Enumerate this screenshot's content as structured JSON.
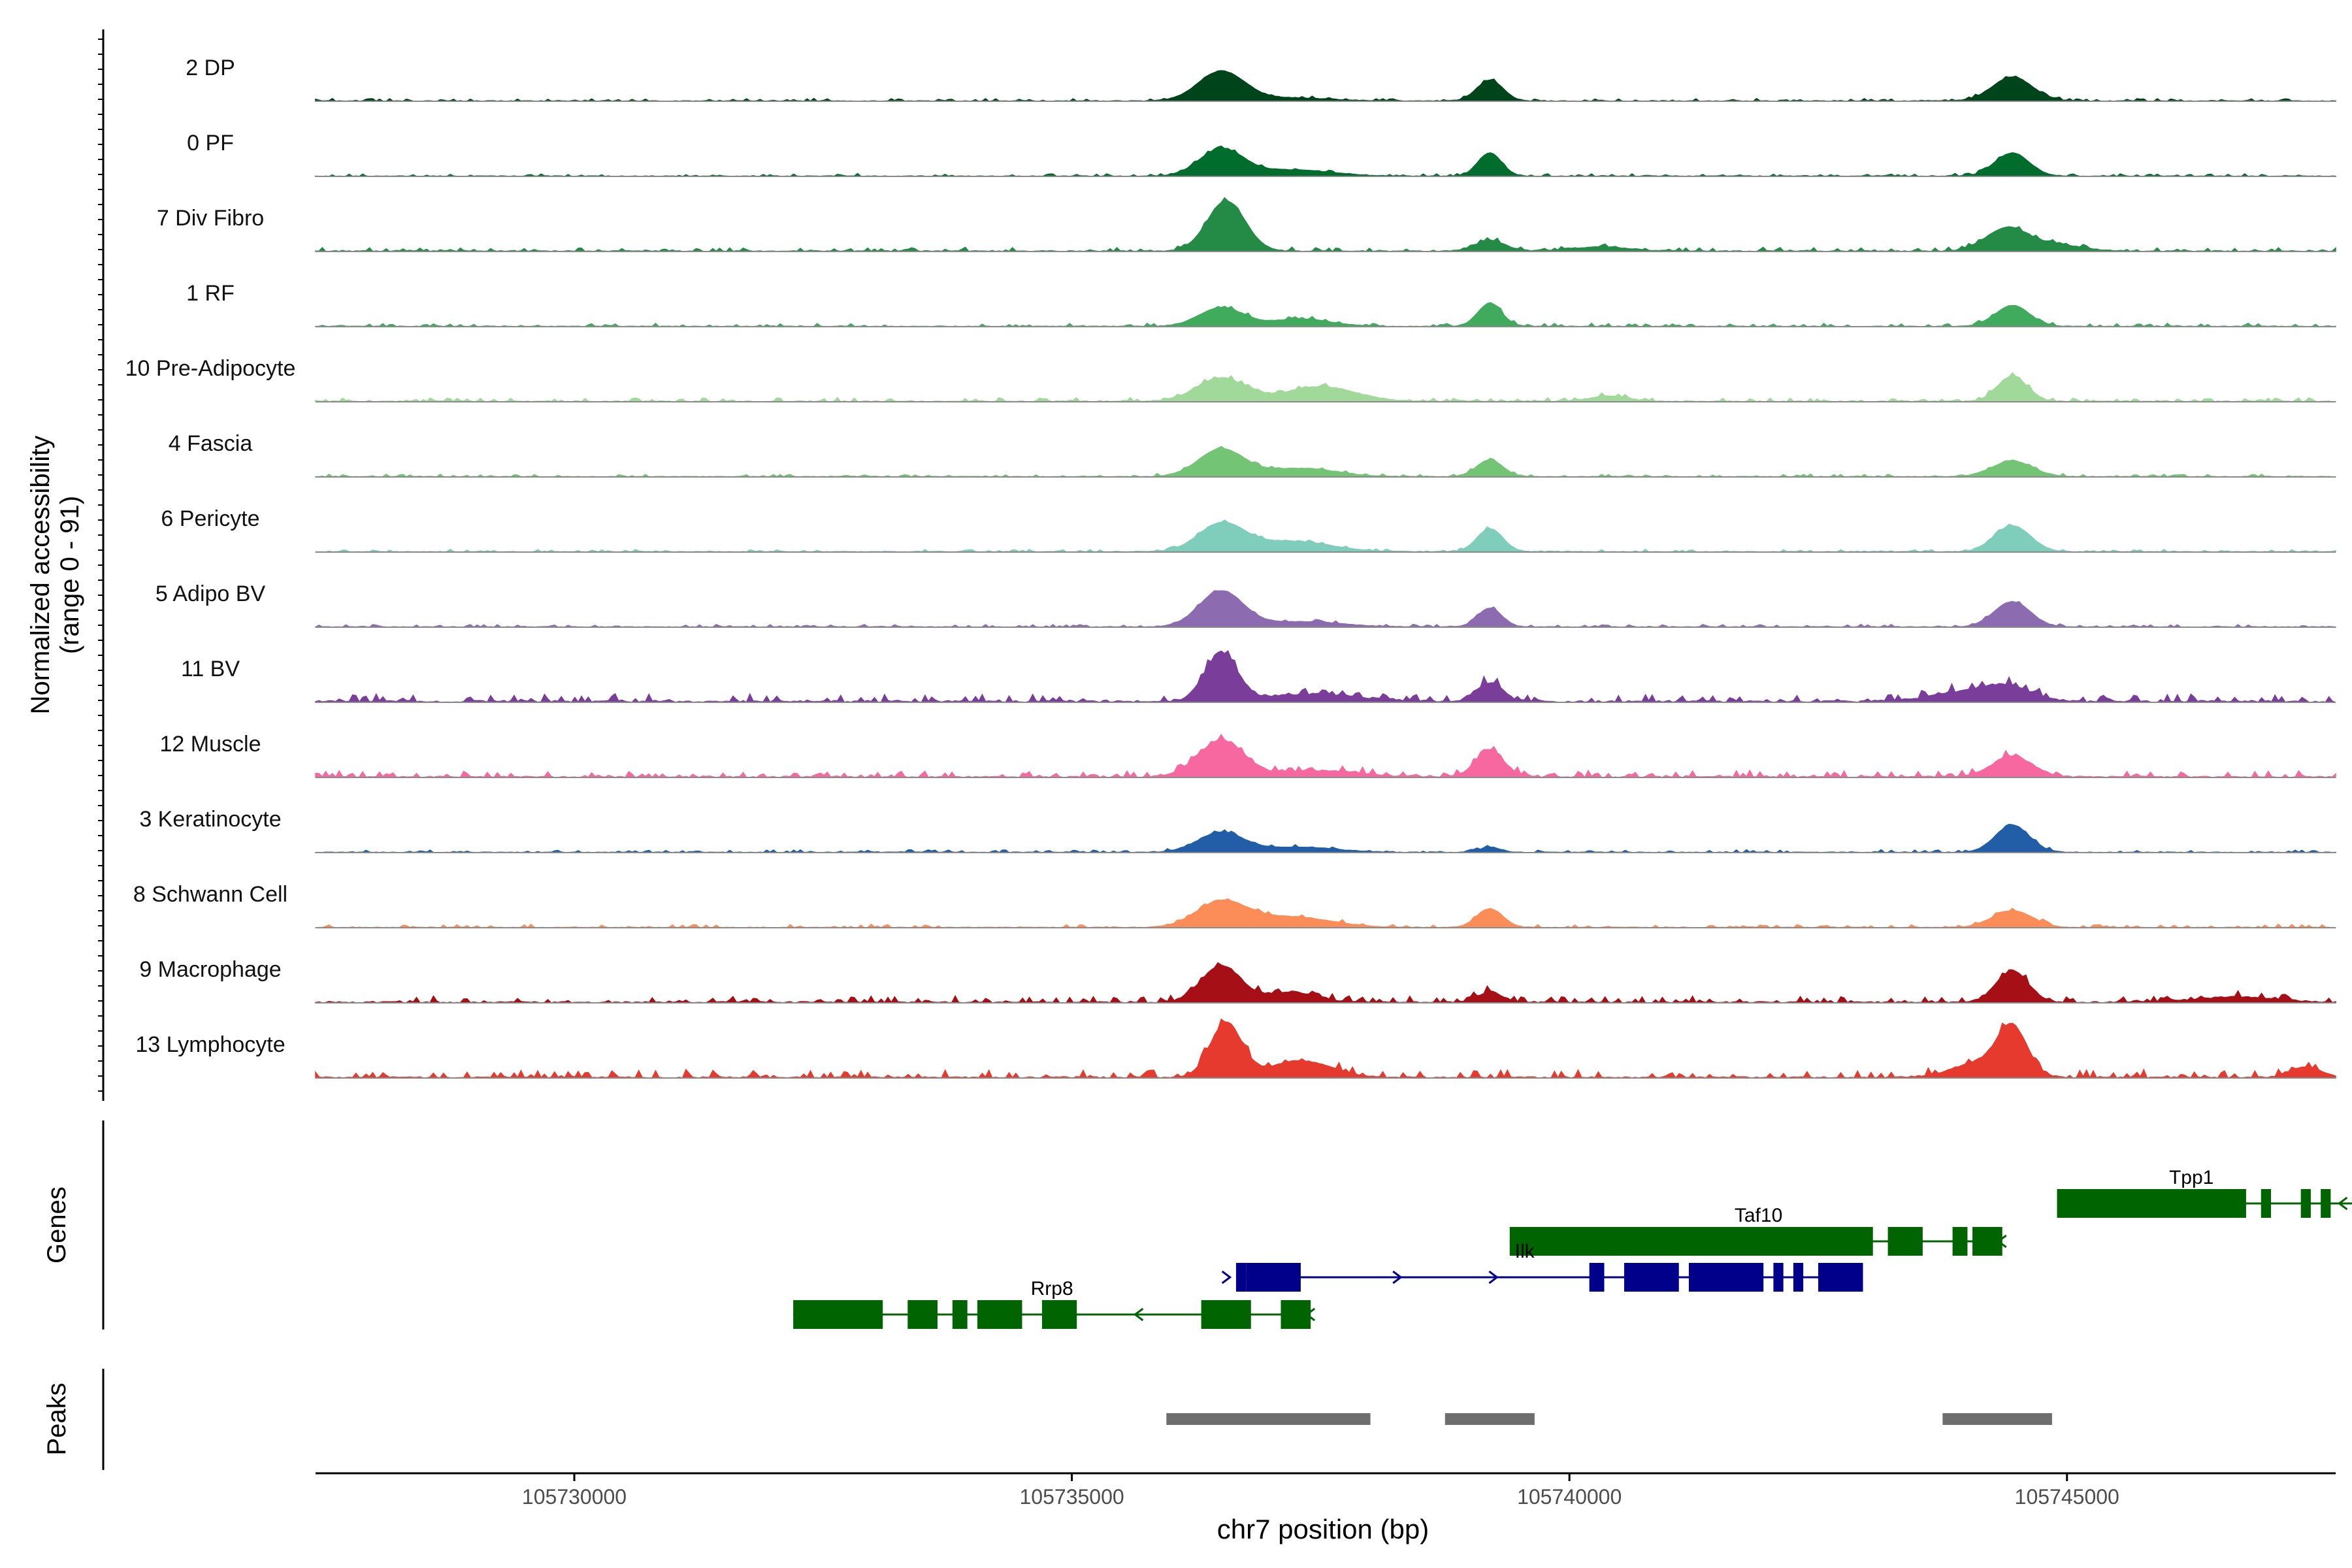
{
  "chart_data": {
    "type": "area",
    "title": "",
    "ylabel_line1": "Normalized accessibility",
    "ylabel_line2": "(range 0 - 91)",
    "xlabel": "chr7 position (bp)",
    "xlim": [
      105727400,
      105747700
    ],
    "ylim": [
      0,
      91
    ],
    "x_ticks": [
      105730000,
      105735000,
      105740000,
      105745000
    ],
    "x_tick_labels": [
      "105730000",
      "105735000",
      "105740000",
      "105745000"
    ],
    "tracks": [
      {
        "name": "2 DP",
        "color": "#00441b",
        "base": 1,
        "noise": 0.8,
        "seed": 11,
        "peaks": [
          [
            105736500,
            28,
            230
          ],
          [
            105739200,
            20,
            130
          ],
          [
            105744450,
            23,
            200
          ],
          [
            105737200,
            3,
            400
          ]
        ]
      },
      {
        "name": "0 PF",
        "color": "#006d2c",
        "base": 1,
        "noise": 0.8,
        "seed": 12,
        "peaks": [
          [
            105736500,
            25,
            220
          ],
          [
            105737200,
            6,
            400
          ],
          [
            105739200,
            22,
            120
          ],
          [
            105744450,
            22,
            170
          ]
        ]
      },
      {
        "name": "7 Div Fibro",
        "color": "#238b45",
        "base": 1.5,
        "noise": 1.2,
        "seed": 13,
        "peaks": [
          [
            105736550,
            48,
            190
          ],
          [
            105739200,
            10,
            150
          ],
          [
            105744400,
            22,
            210
          ],
          [
            105744900,
            6,
            250
          ],
          [
            105740300,
            4,
            300
          ]
        ]
      },
      {
        "name": "1 RF",
        "color": "#41ab5d",
        "base": 1,
        "noise": 1,
        "seed": 14,
        "peaks": [
          [
            105736500,
            18,
            220
          ],
          [
            105737300,
            7,
            300
          ],
          [
            105739200,
            22,
            120
          ],
          [
            105744450,
            20,
            170
          ]
        ]
      },
      {
        "name": "10 Pre-Adipocyte",
        "color": "#a1d99b",
        "base": 1.5,
        "noise": 1.2,
        "seed": 15,
        "peaks": [
          [
            105736500,
            22,
            250
          ],
          [
            105737500,
            14,
            350
          ],
          [
            105744450,
            24,
            150
          ],
          [
            105740400,
            5,
            200
          ]
        ]
      },
      {
        "name": "4 Fascia",
        "color": "#74c476",
        "base": 1,
        "noise": 0.8,
        "seed": 16,
        "peaks": [
          [
            105736500,
            26,
            230
          ],
          [
            105737300,
            8,
            350
          ],
          [
            105739200,
            16,
            130
          ],
          [
            105744450,
            15,
            200
          ]
        ]
      },
      {
        "name": "6 Pericyte",
        "color": "#7fcdbb",
        "base": 1,
        "noise": 0.8,
        "seed": 17,
        "peaks": [
          [
            105736500,
            26,
            230
          ],
          [
            105737200,
            10,
            400
          ],
          [
            105739200,
            22,
            130
          ],
          [
            105744450,
            25,
            180
          ]
        ]
      },
      {
        "name": "5 Adipo BV",
        "color": "#8c6bb1",
        "base": 1,
        "noise": 0.8,
        "seed": 18,
        "peaks": [
          [
            105736500,
            34,
            220
          ],
          [
            105739200,
            18,
            120
          ],
          [
            105744450,
            24,
            180
          ],
          [
            105737300,
            5,
            400
          ]
        ]
      },
      {
        "name": "11 BV",
        "color": "#7a3d9a",
        "base": 3,
        "noise": 2.5,
        "seed": 19,
        "peaks": [
          [
            105736500,
            46,
            160
          ],
          [
            105739200,
            18,
            130
          ],
          [
            105744400,
            14,
            250
          ],
          [
            105743900,
            8,
            300
          ],
          [
            105737400,
            7,
            500
          ]
        ]
      },
      {
        "name": "12 Muscle",
        "color": "#f768a1",
        "base": 2,
        "noise": 2,
        "seed": 20,
        "peaks": [
          [
            105736500,
            35,
            230
          ],
          [
            105739200,
            26,
            140
          ],
          [
            105744450,
            20,
            200
          ],
          [
            105737500,
            6,
            400
          ]
        ]
      },
      {
        "name": "3 Keratinocyte",
        "color": "#225ea8",
        "base": 1,
        "noise": 0.8,
        "seed": 21,
        "peaks": [
          [
            105736500,
            19,
            230
          ],
          [
            105737300,
            5,
            350
          ],
          [
            105739200,
            5,
            100
          ],
          [
            105744450,
            26,
            170
          ]
        ]
      },
      {
        "name": "8 Schwann Cell",
        "color": "#fc8d59",
        "base": 1,
        "noise": 1,
        "seed": 22,
        "peaks": [
          [
            105736500,
            24,
            250
          ],
          [
            105737200,
            10,
            400
          ],
          [
            105739200,
            18,
            130
          ],
          [
            105744450,
            16,
            200
          ]
        ]
      },
      {
        "name": "9 Macrophage",
        "color": "#a50f15",
        "base": 2,
        "noise": 2,
        "seed": 23,
        "peaks": [
          [
            105736500,
            35,
            200
          ],
          [
            105737200,
            10,
            250
          ],
          [
            105739200,
            10,
            120
          ],
          [
            105744450,
            30,
            160
          ],
          [
            105746700,
            5,
            400
          ]
        ]
      },
      {
        "name": "13 Lymphocyte",
        "color": "#e63a2e",
        "base": 2,
        "noise": 2.5,
        "seed": 24,
        "peaks": [
          [
            105736550,
            52,
            160
          ],
          [
            105737300,
            16,
            300
          ],
          [
            105744450,
            46,
            150
          ],
          [
            105744100,
            14,
            250
          ],
          [
            105747400,
            10,
            150
          ]
        ]
      }
    ],
    "genes": [
      {
        "name": "Tpp1",
        "color": "#006400",
        "strand": "-",
        "row": 0,
        "start": 105744900,
        "end": 105747900,
        "label_x": 105746250,
        "exons": [
          [
            105744900,
            105746800
          ],
          [
            105746950,
            105747050
          ],
          [
            105747350,
            105747450
          ],
          [
            105747550,
            105747650
          ]
        ]
      },
      {
        "name": "Taf10",
        "color": "#006400",
        "strand": "-",
        "row": 1,
        "start": 105739400,
        "end": 105744350,
        "label_x": 105741900,
        "exons": [
          [
            105739400,
            105743050
          ],
          [
            105743200,
            105743550
          ],
          [
            105743850,
            105744000
          ],
          [
            105744050,
            105744350
          ]
        ]
      },
      {
        "name": "Ilk",
        "color": "#00008b",
        "strand": "+",
        "row": 2,
        "start": 105736650,
        "end": 105742950,
        "label_x": 105739550,
        "exons": [
          [
            105736650,
            105736750
          ],
          [
            105736750,
            105737300
          ],
          [
            105740200,
            105740350
          ],
          [
            105740550,
            105741100
          ],
          [
            105741200,
            105741950
          ],
          [
            105742050,
            105742150
          ],
          [
            105742250,
            105742350
          ],
          [
            105742500,
            105742950
          ]
        ]
      },
      {
        "name": "Rrp8",
        "color": "#006400",
        "strand": "-",
        "row": 3,
        "start": 105732200,
        "end": 105737400,
        "label_x": 105734800,
        "exons": [
          [
            105732200,
            105733100
          ],
          [
            105733350,
            105733650
          ],
          [
            105733800,
            105733950
          ],
          [
            105734050,
            105734500
          ],
          [
            105734700,
            105735050
          ],
          [
            105736300,
            105736800
          ],
          [
            105737100,
            105737400
          ]
        ]
      }
    ],
    "peaks_regions": [
      [
        105735950,
        105738000
      ],
      [
        105738750,
        105739650
      ],
      [
        105743750,
        105744850
      ]
    ],
    "genes_label": "Genes",
    "peaks_label": "Peaks",
    "colors": {
      "axis": "#000000",
      "peak_bar": "#6e6e6e",
      "track_baseline": "#8a8a8a"
    }
  }
}
